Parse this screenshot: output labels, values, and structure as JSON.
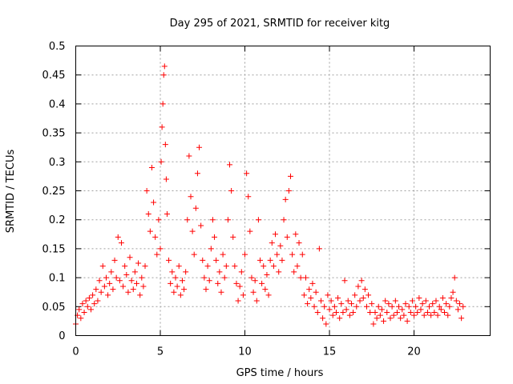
{
  "chart_data": {
    "type": "scatter",
    "title": "Day 295 of 2021, SRMTID for receiver kitg",
    "xlabel": "GPS time / hours",
    "ylabel": "SRMTID / TECUs",
    "xlim": [
      0,
      24.5
    ],
    "ylim": [
      0,
      0.5
    ],
    "xticks": [
      0,
      5,
      10,
      15,
      20
    ],
    "xtick_labels": [
      "0",
      "5",
      "10",
      "15",
      "20"
    ],
    "yticks": [
      0,
      0.05,
      0.1,
      0.15,
      0.2,
      0.25,
      0.3,
      0.35,
      0.4,
      0.45,
      0.5
    ],
    "ytick_labels": [
      "0",
      "0.05",
      "0.1",
      "0.15",
      "0.2",
      "0.25",
      "0.3",
      "0.35",
      "0.4",
      "0.45",
      "0.5"
    ],
    "grid": true,
    "marker": "+",
    "color": "#ff0000",
    "series": [
      {
        "name": "SRMTID",
        "points": [
          [
            0.0,
            0.02
          ],
          [
            0.1,
            0.035
          ],
          [
            0.2,
            0.045
          ],
          [
            0.3,
            0.03
          ],
          [
            0.4,
            0.055
          ],
          [
            0.5,
            0.04
          ],
          [
            0.6,
            0.06
          ],
          [
            0.7,
            0.05
          ],
          [
            0.8,
            0.065
          ],
          [
            0.9,
            0.045
          ],
          [
            1.0,
            0.07
          ],
          [
            1.1,
            0.055
          ],
          [
            1.2,
            0.08
          ],
          [
            1.3,
            0.06
          ],
          [
            1.4,
            0.095
          ],
          [
            1.5,
            0.075
          ],
          [
            1.6,
            0.12
          ],
          [
            1.7,
            0.085
          ],
          [
            1.8,
            0.1
          ],
          [
            1.9,
            0.07
          ],
          [
            2.0,
            0.09
          ],
          [
            2.1,
            0.11
          ],
          [
            2.2,
            0.08
          ],
          [
            2.3,
            0.13
          ],
          [
            2.4,
            0.1
          ],
          [
            2.5,
            0.17
          ],
          [
            2.6,
            0.095
          ],
          [
            2.7,
            0.16
          ],
          [
            2.8,
            0.085
          ],
          [
            2.9,
            0.12
          ],
          [
            3.0,
            0.105
          ],
          [
            3.1,
            0.075
          ],
          [
            3.2,
            0.135
          ],
          [
            3.3,
            0.095
          ],
          [
            3.4,
            0.08
          ],
          [
            3.5,
            0.11
          ],
          [
            3.6,
            0.09
          ],
          [
            3.7,
            0.125
          ],
          [
            3.8,
            0.07
          ],
          [
            3.9,
            0.1
          ],
          [
            4.0,
            0.085
          ],
          [
            4.1,
            0.12
          ],
          [
            4.2,
            0.25
          ],
          [
            4.3,
            0.21
          ],
          [
            4.4,
            0.18
          ],
          [
            4.5,
            0.29
          ],
          [
            4.6,
            0.23
          ],
          [
            4.7,
            0.17
          ],
          [
            4.8,
            0.14
          ],
          [
            4.9,
            0.2
          ],
          [
            5.0,
            0.15
          ],
          [
            5.05,
            0.3
          ],
          [
            5.1,
            0.36
          ],
          [
            5.15,
            0.4
          ],
          [
            5.2,
            0.45
          ],
          [
            5.25,
            0.465
          ],
          [
            5.3,
            0.33
          ],
          [
            5.35,
            0.27
          ],
          [
            5.4,
            0.21
          ],
          [
            5.5,
            0.13
          ],
          [
            5.6,
            0.09
          ],
          [
            5.7,
            0.11
          ],
          [
            5.8,
            0.075
          ],
          [
            5.9,
            0.1
          ],
          [
            6.0,
            0.085
          ],
          [
            6.1,
            0.12
          ],
          [
            6.2,
            0.07
          ],
          [
            6.3,
            0.095
          ],
          [
            6.4,
            0.08
          ],
          [
            6.5,
            0.11
          ],
          [
            6.6,
            0.2
          ],
          [
            6.7,
            0.31
          ],
          [
            6.8,
            0.24
          ],
          [
            6.9,
            0.18
          ],
          [
            7.0,
            0.14
          ],
          [
            7.1,
            0.22
          ],
          [
            7.2,
            0.28
          ],
          [
            7.3,
            0.325
          ],
          [
            7.4,
            0.19
          ],
          [
            7.5,
            0.13
          ],
          [
            7.6,
            0.1
          ],
          [
            7.7,
            0.08
          ],
          [
            7.8,
            0.12
          ],
          [
            7.9,
            0.095
          ],
          [
            8.0,
            0.15
          ],
          [
            8.1,
            0.2
          ],
          [
            8.2,
            0.17
          ],
          [
            8.3,
            0.13
          ],
          [
            8.4,
            0.09
          ],
          [
            8.5,
            0.11
          ],
          [
            8.6,
            0.075
          ],
          [
            8.7,
            0.14
          ],
          [
            8.8,
            0.1
          ],
          [
            8.9,
            0.12
          ],
          [
            9.0,
            0.2
          ],
          [
            9.1,
            0.295
          ],
          [
            9.2,
            0.25
          ],
          [
            9.3,
            0.17
          ],
          [
            9.4,
            0.12
          ],
          [
            9.5,
            0.09
          ],
          [
            9.6,
            0.06
          ],
          [
            9.7,
            0.085
          ],
          [
            9.8,
            0.11
          ],
          [
            9.9,
            0.07
          ],
          [
            10.0,
            0.14
          ],
          [
            10.1,
            0.28
          ],
          [
            10.2,
            0.24
          ],
          [
            10.3,
            0.18
          ],
          [
            10.4,
            0.1
          ],
          [
            10.5,
            0.075
          ],
          [
            10.6,
            0.095
          ],
          [
            10.7,
            0.06
          ],
          [
            10.8,
            0.2
          ],
          [
            10.9,
            0.13
          ],
          [
            11.0,
            0.09
          ],
          [
            11.1,
            0.12
          ],
          [
            11.2,
            0.08
          ],
          [
            11.3,
            0.105
          ],
          [
            11.4,
            0.07
          ],
          [
            11.5,
            0.13
          ],
          [
            11.6,
            0.16
          ],
          [
            11.7,
            0.12
          ],
          [
            11.8,
            0.175
          ],
          [
            11.9,
            0.14
          ],
          [
            12.0,
            0.11
          ],
          [
            12.1,
            0.155
          ],
          [
            12.2,
            0.13
          ],
          [
            12.3,
            0.2
          ],
          [
            12.4,
            0.235
          ],
          [
            12.5,
            0.17
          ],
          [
            12.6,
            0.25
          ],
          [
            12.7,
            0.275
          ],
          [
            12.8,
            0.14
          ],
          [
            12.9,
            0.11
          ],
          [
            13.0,
            0.175
          ],
          [
            13.1,
            0.12
          ],
          [
            13.2,
            0.16
          ],
          [
            13.3,
            0.1
          ],
          [
            13.4,
            0.14
          ],
          [
            13.5,
            0.07
          ],
          [
            13.6,
            0.1
          ],
          [
            13.7,
            0.055
          ],
          [
            13.8,
            0.08
          ],
          [
            13.9,
            0.065
          ],
          [
            14.0,
            0.09
          ],
          [
            14.1,
            0.05
          ],
          [
            14.2,
            0.075
          ],
          [
            14.3,
            0.04
          ],
          [
            14.4,
            0.15
          ],
          [
            14.5,
            0.06
          ],
          [
            14.6,
            0.03
          ],
          [
            14.7,
            0.05
          ],
          [
            14.8,
            0.02
          ],
          [
            14.9,
            0.07
          ],
          [
            15.0,
            0.045
          ],
          [
            15.1,
            0.06
          ],
          [
            15.2,
            0.035
          ],
          [
            15.3,
            0.05
          ],
          [
            15.4,
            0.04
          ],
          [
            15.5,
            0.065
          ],
          [
            15.6,
            0.03
          ],
          [
            15.7,
            0.055
          ],
          [
            15.8,
            0.04
          ],
          [
            15.9,
            0.095
          ],
          [
            16.0,
            0.045
          ],
          [
            16.1,
            0.06
          ],
          [
            16.2,
            0.035
          ],
          [
            16.3,
            0.055
          ],
          [
            16.4,
            0.04
          ],
          [
            16.5,
            0.07
          ],
          [
            16.6,
            0.05
          ],
          [
            16.7,
            0.085
          ],
          [
            16.8,
            0.06
          ],
          [
            16.9,
            0.095
          ],
          [
            17.0,
            0.065
          ],
          [
            17.1,
            0.08
          ],
          [
            17.2,
            0.05
          ],
          [
            17.3,
            0.07
          ],
          [
            17.4,
            0.04
          ],
          [
            17.5,
            0.055
          ],
          [
            17.6,
            0.02
          ],
          [
            17.7,
            0.04
          ],
          [
            17.8,
            0.03
          ],
          [
            17.9,
            0.05
          ],
          [
            18.0,
            0.035
          ],
          [
            18.1,
            0.045
          ],
          [
            18.2,
            0.025
          ],
          [
            18.3,
            0.06
          ],
          [
            18.4,
            0.04
          ],
          [
            18.5,
            0.055
          ],
          [
            18.6,
            0.03
          ],
          [
            18.7,
            0.05
          ],
          [
            18.8,
            0.035
          ],
          [
            18.9,
            0.06
          ],
          [
            19.0,
            0.04
          ],
          [
            19.1,
            0.05
          ],
          [
            19.2,
            0.03
          ],
          [
            19.3,
            0.045
          ],
          [
            19.4,
            0.035
          ],
          [
            19.5,
            0.055
          ],
          [
            19.6,
            0.025
          ],
          [
            19.7,
            0.05
          ],
          [
            19.8,
            0.04
          ],
          [
            19.9,
            0.06
          ],
          [
            20.0,
            0.035
          ],
          [
            20.1,
            0.05
          ],
          [
            20.2,
            0.04
          ],
          [
            20.3,
            0.065
          ],
          [
            20.4,
            0.045
          ],
          [
            20.5,
            0.055
          ],
          [
            20.6,
            0.035
          ],
          [
            20.7,
            0.06
          ],
          [
            20.8,
            0.04
          ],
          [
            20.9,
            0.05
          ],
          [
            21.0,
            0.035
          ],
          [
            21.1,
            0.055
          ],
          [
            21.2,
            0.04
          ],
          [
            21.3,
            0.06
          ],
          [
            21.4,
            0.035
          ],
          [
            21.5,
            0.05
          ],
          [
            21.6,
            0.045
          ],
          [
            21.7,
            0.065
          ],
          [
            21.8,
            0.04
          ],
          [
            21.9,
            0.055
          ],
          [
            22.0,
            0.035
          ],
          [
            22.1,
            0.05
          ],
          [
            22.2,
            0.065
          ],
          [
            22.3,
            0.075
          ],
          [
            22.4,
            0.1
          ],
          [
            22.5,
            0.06
          ],
          [
            22.6,
            0.045
          ],
          [
            22.7,
            0.055
          ],
          [
            22.8,
            0.03
          ],
          [
            22.9,
            0.05
          ]
        ]
      }
    ]
  }
}
